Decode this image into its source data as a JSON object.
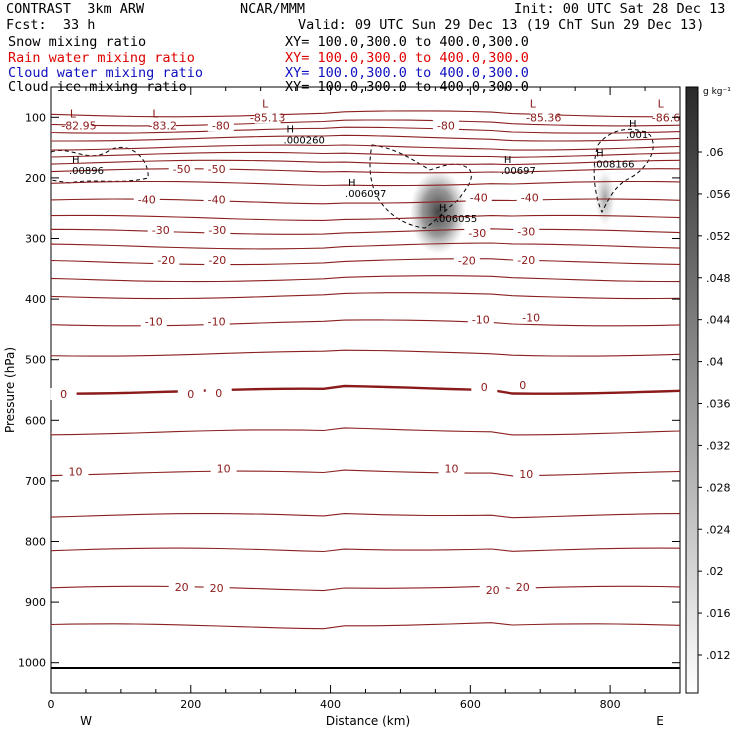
{
  "header": {
    "title": "CONTRAST  3km ARW",
    "center": "NCAR/MMM",
    "init": "Init: 00 UTC Sat 28 Dec 13",
    "fcst": "Fcst:  33 h",
    "valid": "Valid: 09 UTC Sun 29 Dec 13 (19 ChT Sun 29 Dec 13)",
    "fields": [
      {
        "label": "Snow mixing ratio",
        "xy": "XY= 100.0,300.0 to 400.0,300.0",
        "color": "#000000"
      },
      {
        "label": "Rain water mixing ratio",
        "xy": "XY= 100.0,300.0 to 400.0,300.0",
        "color": "#e00000"
      },
      {
        "label": "Cloud water mixing ratio",
        "xy": "XY= 100.0,300.0 to 400.0,300.0",
        "color": "#1010c0"
      },
      {
        "label": "Cloud ice mixing ratio",
        "xy": "XY= 100.0,300.0 to 400.0,300.0",
        "color": "#000000"
      }
    ]
  },
  "chart_data": {
    "type": "cross-section contour",
    "xlabel": "Distance (km)",
    "ylabel": "Pressure (hPa)",
    "xlim": [
      0,
      900
    ],
    "ylim": [
      1050,
      50
    ],
    "x_ticks": [
      0,
      200,
      400,
      600,
      800
    ],
    "y_ticks": [
      100,
      200,
      300,
      400,
      500,
      600,
      700,
      800,
      900,
      1000
    ],
    "endpoints": {
      "west": "W",
      "east": "E"
    },
    "colorbar": {
      "unit": "g kg⁻¹",
      "ticks": [
        ".06",
        ".056",
        ".052",
        ".048",
        ".044",
        ".04",
        ".036",
        ".032",
        ".028",
        ".024",
        ".02",
        ".016",
        ".012"
      ]
    },
    "temperature_contour_labels": [
      {
        "text": "-82.95",
        "x": 40,
        "p": 117
      },
      {
        "text": "-83.2",
        "x": 160,
        "p": 117
      },
      {
        "text": "-80",
        "x": 243,
        "p": 117
      },
      {
        "text": "-85.13",
        "x": 310,
        "p": 104
      },
      {
        "text": "-80",
        "x": 565,
        "p": 117
      },
      {
        "text": "-85.36",
        "x": 705,
        "p": 104
      },
      {
        "text": "-86.6",
        "x": 880,
        "p": 104
      },
      {
        "text": "-50",
        "x": 187,
        "p": 189
      },
      {
        "text": "-50",
        "x": 237,
        "p": 189
      },
      {
        "text": "-40",
        "x": 137,
        "p": 239
      },
      {
        "text": "-40",
        "x": 237,
        "p": 239
      },
      {
        "text": "-40",
        "x": 612,
        "p": 236
      },
      {
        "text": "-40",
        "x": 685,
        "p": 236
      },
      {
        "text": "-30",
        "x": 157,
        "p": 289
      },
      {
        "text": "-30",
        "x": 238,
        "p": 289
      },
      {
        "text": "-30",
        "x": 610,
        "p": 294
      },
      {
        "text": "-30",
        "x": 680,
        "p": 292
      },
      {
        "text": "-20",
        "x": 165,
        "p": 339
      },
      {
        "text": "-20",
        "x": 238,
        "p": 339
      },
      {
        "text": "-20",
        "x": 595,
        "p": 340
      },
      {
        "text": "-20",
        "x": 680,
        "p": 339
      },
      {
        "text": "-10",
        "x": 147,
        "p": 440
      },
      {
        "text": "-10",
        "x": 237,
        "p": 440
      },
      {
        "text": "-10",
        "x": 615,
        "p": 437
      },
      {
        "text": "-10",
        "x": 687,
        "p": 434
      },
      {
        "text": "0",
        "x": 18,
        "p": 560
      },
      {
        "text": "0",
        "x": 200,
        "p": 560
      },
      {
        "text": "0",
        "x": 240,
        "p": 558
      },
      {
        "text": "0",
        "x": 620,
        "p": 548
      },
      {
        "text": "0",
        "x": 675,
        "p": 545
      },
      {
        "text": "10",
        "x": 35,
        "p": 688
      },
      {
        "text": "10",
        "x": 247,
        "p": 683
      },
      {
        "text": "10",
        "x": 573,
        "p": 683
      },
      {
        "text": "10",
        "x": 680,
        "p": 692
      },
      {
        "text": "20",
        "x": 187,
        "p": 878
      },
      {
        "text": "20",
        "x": 237,
        "p": 880
      },
      {
        "text": "20",
        "x": 632,
        "p": 883
      },
      {
        "text": "20",
        "x": 675,
        "p": 878
      }
    ],
    "extrema": [
      {
        "kind": "L",
        "x": 27,
        "p": 100
      },
      {
        "kind": "L",
        "x": 145,
        "p": 100
      },
      {
        "kind": "L",
        "x": 302,
        "p": 84
      },
      {
        "kind": "L",
        "x": 685,
        "p": 84
      },
      {
        "kind": "L",
        "x": 868,
        "p": 84
      },
      {
        "kind": "H",
        "value": ".00896",
        "x": 30,
        "p": 175
      },
      {
        "kind": "H",
        "value": ".000260",
        "x": 337,
        "p": 125
      },
      {
        "kind": "H",
        "value": ".006097",
        "x": 425,
        "p": 213
      },
      {
        "kind": "H",
        "value": ".006055",
        "x": 555,
        "p": 255
      },
      {
        "kind": "H",
        "value": ".00697",
        "x": 648,
        "p": 175
      },
      {
        "kind": "H",
        "value": ".008166",
        "x": 780,
        "p": 165
      },
      {
        "kind": "H",
        "value": ".001",
        "x": 827,
        "p": 116
      }
    ]
  }
}
